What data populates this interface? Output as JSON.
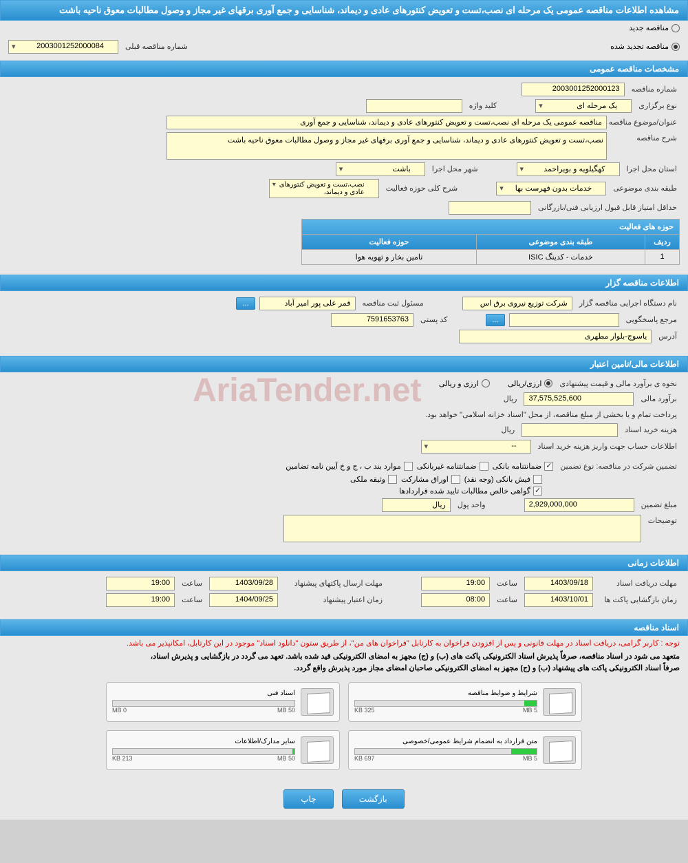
{
  "header_title": "مشاهده اطلاعات مناقصه عمومی یک مرحله ای نصب،تست و تعویض کنتورهای عادی و دیماند، شناسایی و جمع آوری برقهای غیر مجاز و وصول مطالبات معوق ناحیه باشت",
  "radios": {
    "new": "مناقصه جدید",
    "renewed": "مناقصه تجدید شده"
  },
  "prev_number_label": "شماره مناقصه قبلی",
  "prev_number": "2003001252000084",
  "sections": {
    "general": "مشخصات مناقصه عمومی",
    "holder": "اطلاعات مناقصه گزار",
    "financial": "اطلاعات مالی/تامین اعتبار",
    "timing": "اطلاعات زمانی",
    "docs": "اسناد مناقصه"
  },
  "general": {
    "number_label": "شماره مناقصه",
    "number": "2003001252000123",
    "type_label": "نوع برگزاری",
    "type": "یک مرحله ای",
    "keyword_label": "کلید واژه",
    "keyword": "",
    "title_label": "عنوان/موضوع مناقصه",
    "title": "مناقصه عمومی یک مرحله ای نصب،تست و تعویض کنتورهای عادی و دیماند، شناسایی و جمع آوری",
    "desc_label": "شرح مناقصه",
    "desc": "نصب،تست و تعویض کنتورهای عادی و دیماند، شناسایی و جمع آوری برقهای غیر مجاز و وصول مطالبات معوق ناحیه باشت",
    "province_label": "استان محل اجرا",
    "province": "کهگیلویه و بویراحمد",
    "city_label": "شهر محل اجرا",
    "city": "باشت",
    "category_label": "طبقه بندی موضوعی",
    "category": "خدمات بدون فهرست بها",
    "activity_label": "شرح کلی حوزه فعالیت",
    "activity": "نصب،تست و تعویض کنتورهای عادی و دیماند،",
    "min_score_label": "حداقل امتیاز قابل قبول ارزیابی فنی/بازرگانی",
    "min_score": "",
    "table_title": "حوزه های فعالیت",
    "table_cols": [
      "ردیف",
      "طبقه بندی موضوعی",
      "حوزه فعالیت"
    ],
    "table_row": [
      "1",
      "خدمات - کدینگ ISIC",
      "تامین بخار و تهویه هوا"
    ]
  },
  "holder": {
    "org_label": "نام دستگاه اجرایی مناقصه گزار",
    "org": "شرکت توزیع نیروی برق اس",
    "registrar_label": "مسئول ثبت مناقصه",
    "registrar": "قمر علی پور امیر آباد",
    "ref_label": "مرجع پاسخگویی",
    "ref": "",
    "postal_label": "کد پستی",
    "postal": "7591653763",
    "address_label": "آدرس",
    "address": "یاسوج-بلوار مطهری"
  },
  "financial": {
    "est_type_label": "نحوه ی برآورد مالی و قیمت پیشنهادی",
    "radio_rial": "ارزی/ریالی",
    "radio_arz": "ارزی و ریالی",
    "est_label": "برآورد مالی",
    "est": "37,575,525,600",
    "currency": "ریال",
    "pay_note": "پرداخت تمام و یا بخشی از مبلغ مناقصه، از محل \"اسناد خزانه اسلامی\" خواهد بود.",
    "doc_cost_label": "هزینه خرید اسناد",
    "doc_cost": "",
    "account_label": "اطلاعات حساب جهت واریز هزینه خرید اسناد",
    "account": "--",
    "guarantee_label": "تضمین شرکت در مناقصه:   نوع تضمین",
    "chk_bank": "ضمانتنامه بانکی",
    "chk_nonbank": "ضمانتنامه غیربانکی",
    "chk_items": "موارد بند ب ، ج و خ آیین نامه تضامین",
    "chk_fish": "فیش بانکی (وجه نقد)",
    "chk_oragh": "اوراق مشارکت",
    "chk_property": "وثیقه ملکی",
    "chk_cert": "گواهی خالص مطالبات تایید شده قراردادها",
    "amount_label": "مبلغ تضمین",
    "amount": "2,929,000,000",
    "unit_label": "واحد پول",
    "unit": "ریال",
    "notes_label": "توضیحات"
  },
  "timing": {
    "receive_label": "مهلت دریافت اسناد",
    "receive_date": "1403/09/18",
    "receive_time": "19:00",
    "send_label": "مهلت ارسال پاکتهای پیشنهاد",
    "send_date": "1403/09/28",
    "send_time": "19:00",
    "open_label": "زمان بازگشایی پاکت ها",
    "open_date": "1403/10/01",
    "open_time": "08:00",
    "valid_label": "زمان اعتبار پیشنهاد",
    "valid_date": "1404/09/25",
    "valid_time": "19:00",
    "time_label": "ساعت"
  },
  "docs": {
    "note_red": "توجه : کاربر گرامی، دریافت اسناد در مهلت قانونی و پس از افزودن فراخوان به کارتابل \"فراخوان های من\"، از طریق ستون \"دانلود اسناد\" موجود در این کارتابل، امکانپذیر می باشد.",
    "note1": "متعهد می شود در اسناد مناقصه، صرفاً پذیرش اسناد الکترونیکی پاکت های (ب) و (ج) مجهز به امضای الکترونیکی قید شده باشد. تعهد می گردد در بازگشایی و پذیرش اسناد،",
    "note2": "صرفاً اسناد الکترونیکی پاکت های پیشنهاد (ب) و (ج) مجهز به امضای الکترونیکی صاحبان امضای مجاز مورد پذیرش واقع گردد.",
    "cards": [
      {
        "title": "شرایط و ضوابط مناقصه",
        "size": "325 KB",
        "max": "5 MB",
        "fill_pct": 7
      },
      {
        "title": "اسناد فنی",
        "size": "0 MB",
        "max": "50 MB",
        "fill_pct": 0
      },
      {
        "title": "متن قرارداد به انضمام شرایط عمومی/خصوصی",
        "size": "697 KB",
        "max": "5 MB",
        "fill_pct": 14
      },
      {
        "title": "سایر مدارک/اطلاعات",
        "size": "213 KB",
        "max": "50 MB",
        "fill_pct": 1
      }
    ]
  },
  "buttons": {
    "back": "بازگشت",
    "print": "چاپ",
    "more": "..."
  },
  "watermark": "AriaTender.net"
}
